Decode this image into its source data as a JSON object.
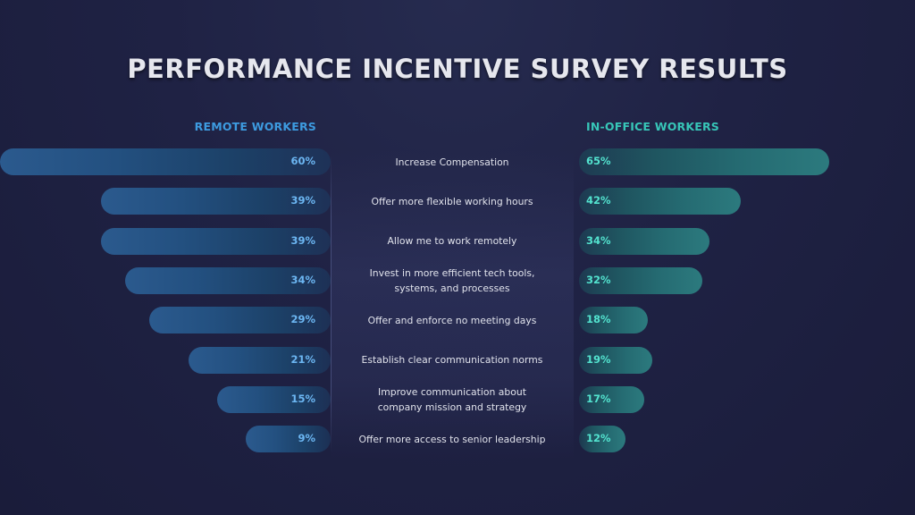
{
  "header": {
    "title": "PERFORMANCE INCENTIVE SURVEY RESULTS",
    "remote_label": "REMOTE WORKERS",
    "office_label": "IN-OFFICE WORKERS"
  },
  "colors": {
    "remote_accent": "#3d9be0",
    "office_accent": "#37c6b8",
    "background": "#1f2244"
  },
  "chart_data": {
    "type": "bar",
    "orientation": "horizontal-diverging",
    "title": "PERFORMANCE INCENTIVE SURVEY RESULTS",
    "categories": [
      "Increase Compensation",
      "Offer more flexible working hours",
      "Allow me to work remotely",
      "Invest in more efficient tech tools,\nsystems, and processes",
      "Offer and enforce no meeting days",
      "Establish  clear communication norms",
      "Improve communication about\ncompany mission and strategy",
      "Offer more access to senior leadership"
    ],
    "series": [
      {
        "name": "REMOTE WORKERS",
        "values": [
          60,
          39,
          39,
          34,
          29,
          21,
          15,
          9
        ],
        "labels": [
          "60%",
          "39%",
          "39%",
          "34%",
          "29%",
          "21%",
          "15%",
          "9%"
        ]
      },
      {
        "name": "IN-OFFICE WORKERS",
        "values": [
          65,
          42,
          34,
          32,
          18,
          19,
          17,
          12
        ],
        "labels": [
          "65%",
          "42%",
          "34%",
          "32%",
          "18%",
          "19%",
          "17%",
          "12%"
        ]
      }
    ],
    "grid": false,
    "legend": "top"
  }
}
